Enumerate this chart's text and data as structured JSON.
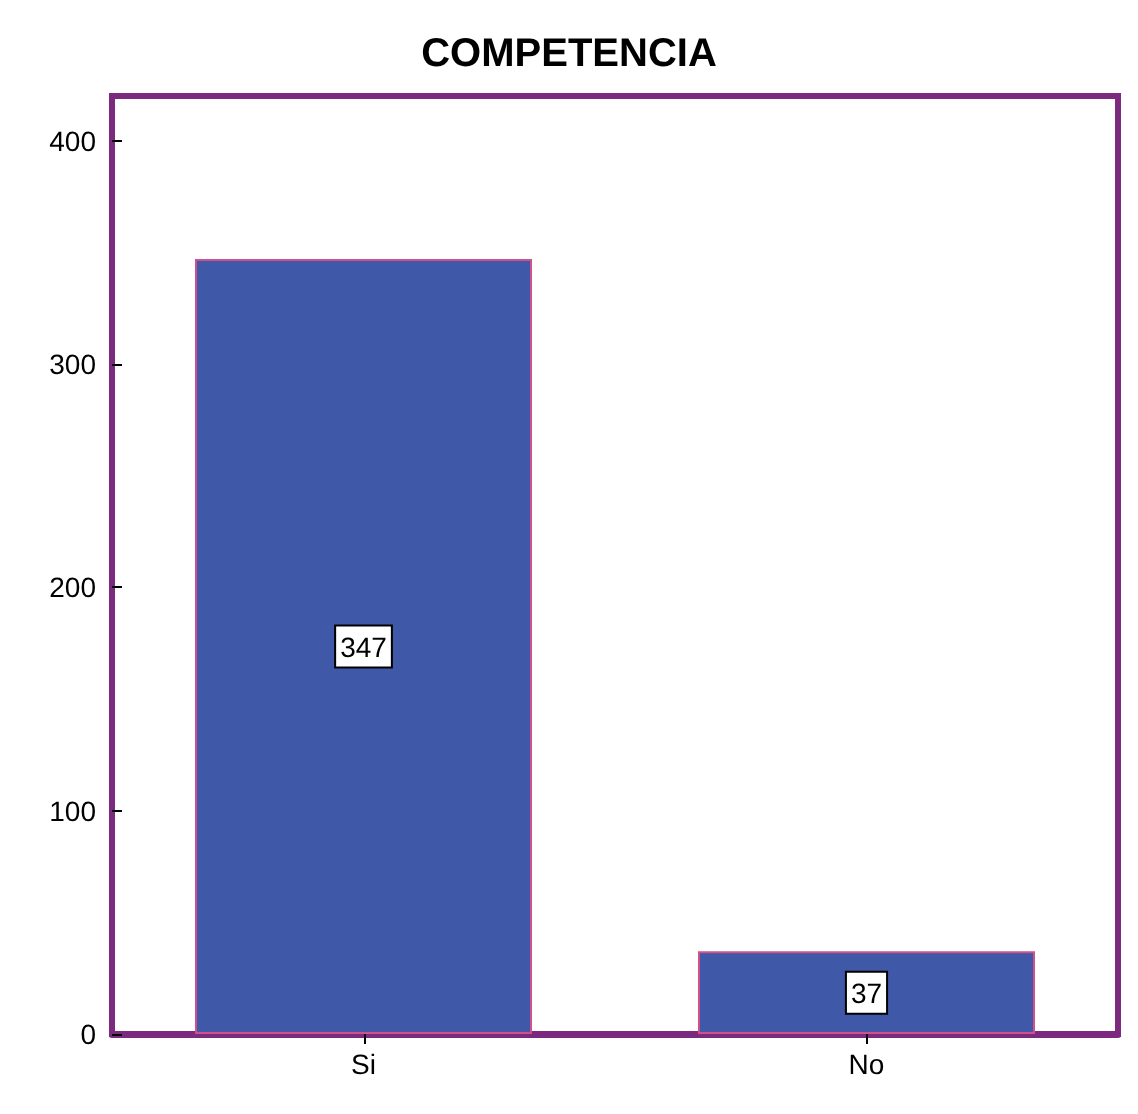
{
  "chart_data": {
    "type": "bar",
    "title": "COMPETENCIA",
    "categories": [
      "Si",
      "No"
    ],
    "values": [
      347,
      37
    ],
    "color": "#3f58a8",
    "ylim": [
      0,
      420
    ],
    "yticks": [
      0,
      100,
      200,
      300,
      400
    ],
    "grid": false,
    "data_labels": true
  }
}
